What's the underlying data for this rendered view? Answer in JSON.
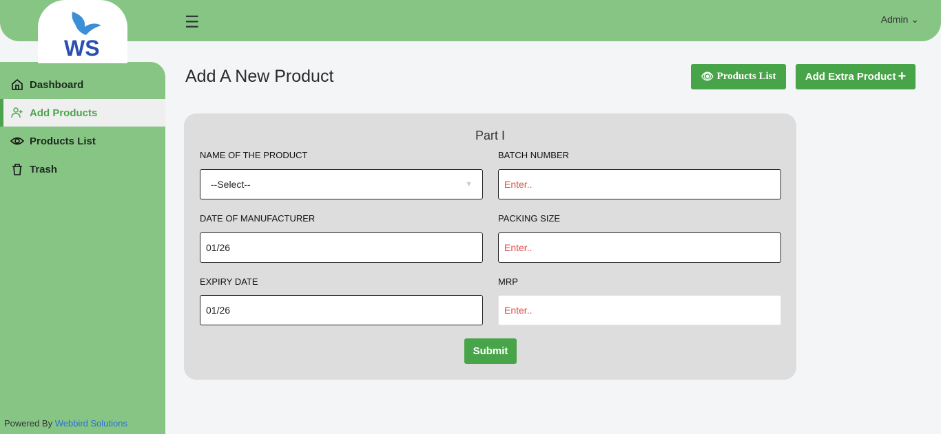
{
  "header": {
    "user": "Admin"
  },
  "sidebar": {
    "items": [
      {
        "label": "Dashboard"
      },
      {
        "label": "Add Products"
      },
      {
        "label": "Products List"
      },
      {
        "label": "Trash"
      }
    ],
    "powered_by": "Powered By",
    "company": "Webbird Solutions"
  },
  "page": {
    "title": "Add A New Product",
    "products_list_button": "Products List",
    "add_extra_button": "Add Extra Product"
  },
  "form": {
    "section": "Part I",
    "name_label": "NAME OF THE PRODUCT",
    "name_value": "--Select--",
    "batch_label": "BATCH NUMBER",
    "batch_placeholder": "Enter..",
    "mfg_label": "DATE OF MANUFACTURER",
    "mfg_value": "01/26",
    "packing_label": "PACKING SIZE",
    "packing_placeholder": "Enter..",
    "expiry_label": "EXPIRY DATE",
    "expiry_value": "01/26",
    "mrp_label": "MRP",
    "mrp_placeholder": "Enter..",
    "submit": "Submit"
  },
  "colors": {
    "primary": "#48a448",
    "sidebar": "#87c585",
    "placeholder": "#d9534f"
  }
}
